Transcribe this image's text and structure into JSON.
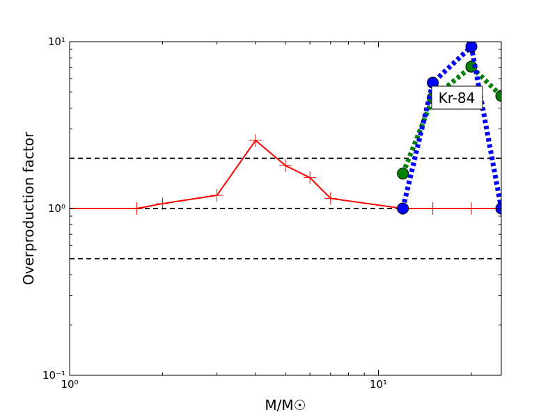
{
  "chart_data": {
    "type": "line",
    "x_label": "M/M☉",
    "y_label": "Overproduction factor",
    "log_x": true,
    "log_y": true,
    "xlim": [
      1,
      25
    ],
    "ylim": [
      0.1,
      10
    ],
    "xticks": [
      {
        "value": 1,
        "label": "10⁰"
      },
      {
        "value": 10,
        "label": "10¹"
      }
    ],
    "yticks": [
      {
        "value": 0.1,
        "label": "10⁻¹"
      },
      {
        "value": 1,
        "label": "10⁰"
      },
      {
        "value": 10,
        "label": "10¹"
      }
    ],
    "xminorticks": [
      2,
      3,
      4,
      5,
      6,
      7,
      8,
      9,
      20
    ],
    "yminorticks": [
      0.2,
      0.3,
      0.4,
      0.5,
      0.6,
      0.7,
      0.8,
      0.9,
      2,
      3,
      4,
      5,
      6,
      7,
      8,
      9
    ],
    "reference_lines": [
      2,
      1,
      0.5
    ],
    "annotation": "Kr-84",
    "series": [
      {
        "color": "#ff0000",
        "style": "solid",
        "marker": "plus",
        "x": [
          1,
          1.65,
          2,
          3,
          4,
          5,
          6,
          7,
          12,
          15,
          20,
          25
        ],
        "values": [
          1,
          1,
          1.07,
          1.2,
          2.56,
          1.81,
          1.53,
          1.15,
          1,
          1,
          1,
          1
        ]
      },
      {
        "color": "#008000",
        "style": "dotted",
        "marker": "circle",
        "x": [
          12,
          15,
          20,
          25
        ],
        "values": [
          1.62,
          4.6,
          7.08,
          4.73
        ]
      },
      {
        "color": "#0000ff",
        "style": "dotted",
        "marker": "circle",
        "x": [
          12,
          15,
          20,
          25
        ],
        "values": [
          1,
          5.68,
          9.35,
          1
        ]
      }
    ]
  }
}
